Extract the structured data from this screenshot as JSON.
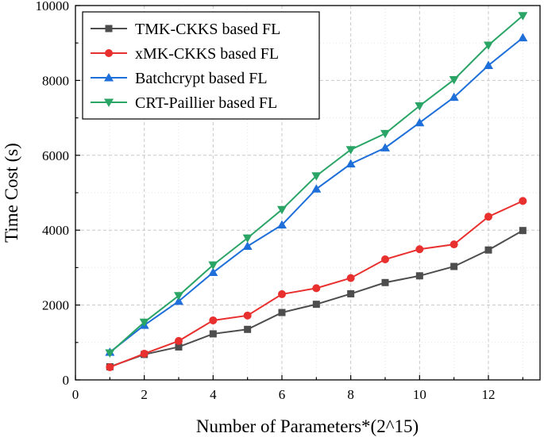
{
  "chart_data": {
    "type": "line",
    "xlabel": "Number of Parameters*(2^15)",
    "ylabel": "Time Cost (s)",
    "xlim": [
      0,
      13.5
    ],
    "ylim": [
      0,
      10000
    ],
    "xticks": [
      0,
      2,
      4,
      6,
      8,
      10,
      12
    ],
    "yticks": [
      0,
      2000,
      4000,
      6000,
      8000,
      10000
    ],
    "grid": true,
    "legend_position": "top-left",
    "x": [
      1,
      2,
      3,
      4,
      5,
      6,
      7,
      8,
      9,
      10,
      11,
      12,
      13
    ],
    "series": [
      {
        "name": "TMK-CKKS based FL",
        "color": "#4d4d4d",
        "marker": "square",
        "values": [
          350,
          680,
          880,
          1230,
          1350,
          1800,
          2020,
          2300,
          2600,
          2780,
          3030,
          3470,
          3990
        ]
      },
      {
        "name": "xMK-CKKS based FL",
        "color": "#e8302f",
        "marker": "circle",
        "values": [
          340,
          700,
          1040,
          1590,
          1720,
          2290,
          2450,
          2720,
          3220,
          3490,
          3620,
          4360,
          4780
        ]
      },
      {
        "name": "Batchcrypt based FL",
        "color": "#1e6fd9",
        "marker": "triangle-up",
        "values": [
          740,
          1460,
          2100,
          2870,
          3570,
          4140,
          5100,
          5770,
          6200,
          6870,
          7550,
          8400,
          9140
        ]
      },
      {
        "name": "CRT-Paillier based FL",
        "color": "#2aa566",
        "marker": "triangle-down",
        "values": [
          720,
          1540,
          2250,
          3070,
          3790,
          4550,
          5450,
          6150,
          6580,
          7320,
          8020,
          8940,
          9730
        ]
      }
    ]
  }
}
